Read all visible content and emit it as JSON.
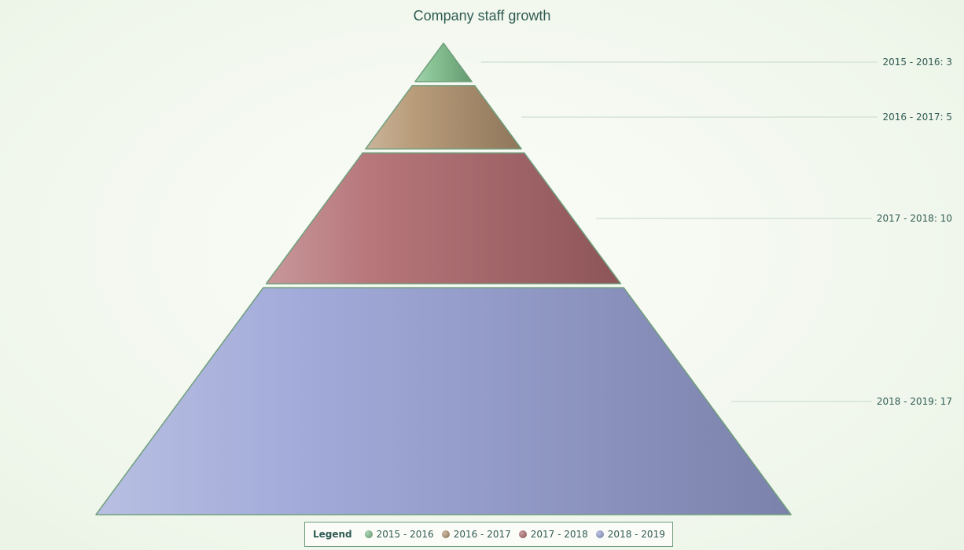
{
  "chart_data": {
    "type": "pyramid",
    "title": "Company staff growth",
    "categories": [
      "2015 - 2016",
      "2016 - 2017",
      "2017 - 2018",
      "2018 - 2019"
    ],
    "values": [
      3,
      5,
      10,
      17
    ],
    "colors": [
      "#7fbf8c",
      "#b39470",
      "#b06a6e",
      "#9aa3d6"
    ],
    "data_labels": [
      "2015 - 2016: 3",
      "2016 - 2017: 5",
      "2017 - 2018: 10",
      "2018 - 2019: 17"
    ],
    "legend": {
      "title": "Legend",
      "position": "bottom-center"
    }
  }
}
